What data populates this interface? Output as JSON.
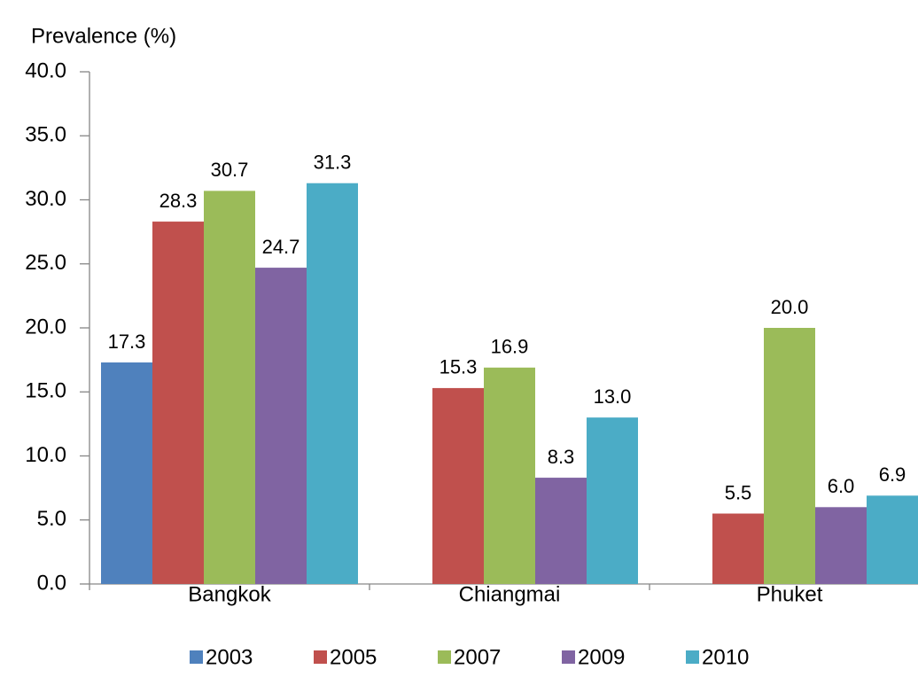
{
  "chart_data": {
    "type": "bar",
    "ylabel": "Prevalence (%)",
    "categories": [
      "Bangkok",
      "Chiangmai",
      "Phuket"
    ],
    "series": [
      {
        "name": "2003",
        "color": "#4f81bd",
        "values": [
          17.3,
          null,
          null
        ],
        "value_labels": [
          "17.3",
          null,
          null
        ]
      },
      {
        "name": "2005",
        "color": "#c0504d",
        "values": [
          28.3,
          15.3,
          5.5
        ],
        "value_labels": [
          "28.3",
          "15.3",
          "5.5"
        ]
      },
      {
        "name": "2007",
        "color": "#9bbb59",
        "values": [
          30.7,
          16.9,
          20.0
        ],
        "value_labels": [
          "30.7",
          "16.9",
          "20.0"
        ]
      },
      {
        "name": "2009",
        "color": "#8064a2",
        "values": [
          24.7,
          8.3,
          6.0
        ],
        "value_labels": [
          "24.7",
          "8.3",
          "6.0"
        ]
      },
      {
        "name": "2010",
        "color": "#4bacc6",
        "values": [
          31.3,
          13.0,
          6.9
        ],
        "value_labels": [
          "31.3",
          "13.0",
          "6.9"
        ]
      }
    ],
    "ylim": [
      0,
      40
    ],
    "yticks": [
      {
        "value": 0,
        "label": "0.0"
      },
      {
        "value": 5,
        "label": "5.0"
      },
      {
        "value": 10,
        "label": "10.0"
      },
      {
        "value": 15,
        "label": "15.0"
      },
      {
        "value": 20,
        "label": "20.0"
      },
      {
        "value": 25,
        "label": "25.0"
      },
      {
        "value": 30,
        "label": "30.0"
      },
      {
        "value": 35,
        "label": "35.0"
      },
      {
        "value": 40,
        "label": "40.0"
      }
    ],
    "legend": "bottom"
  }
}
